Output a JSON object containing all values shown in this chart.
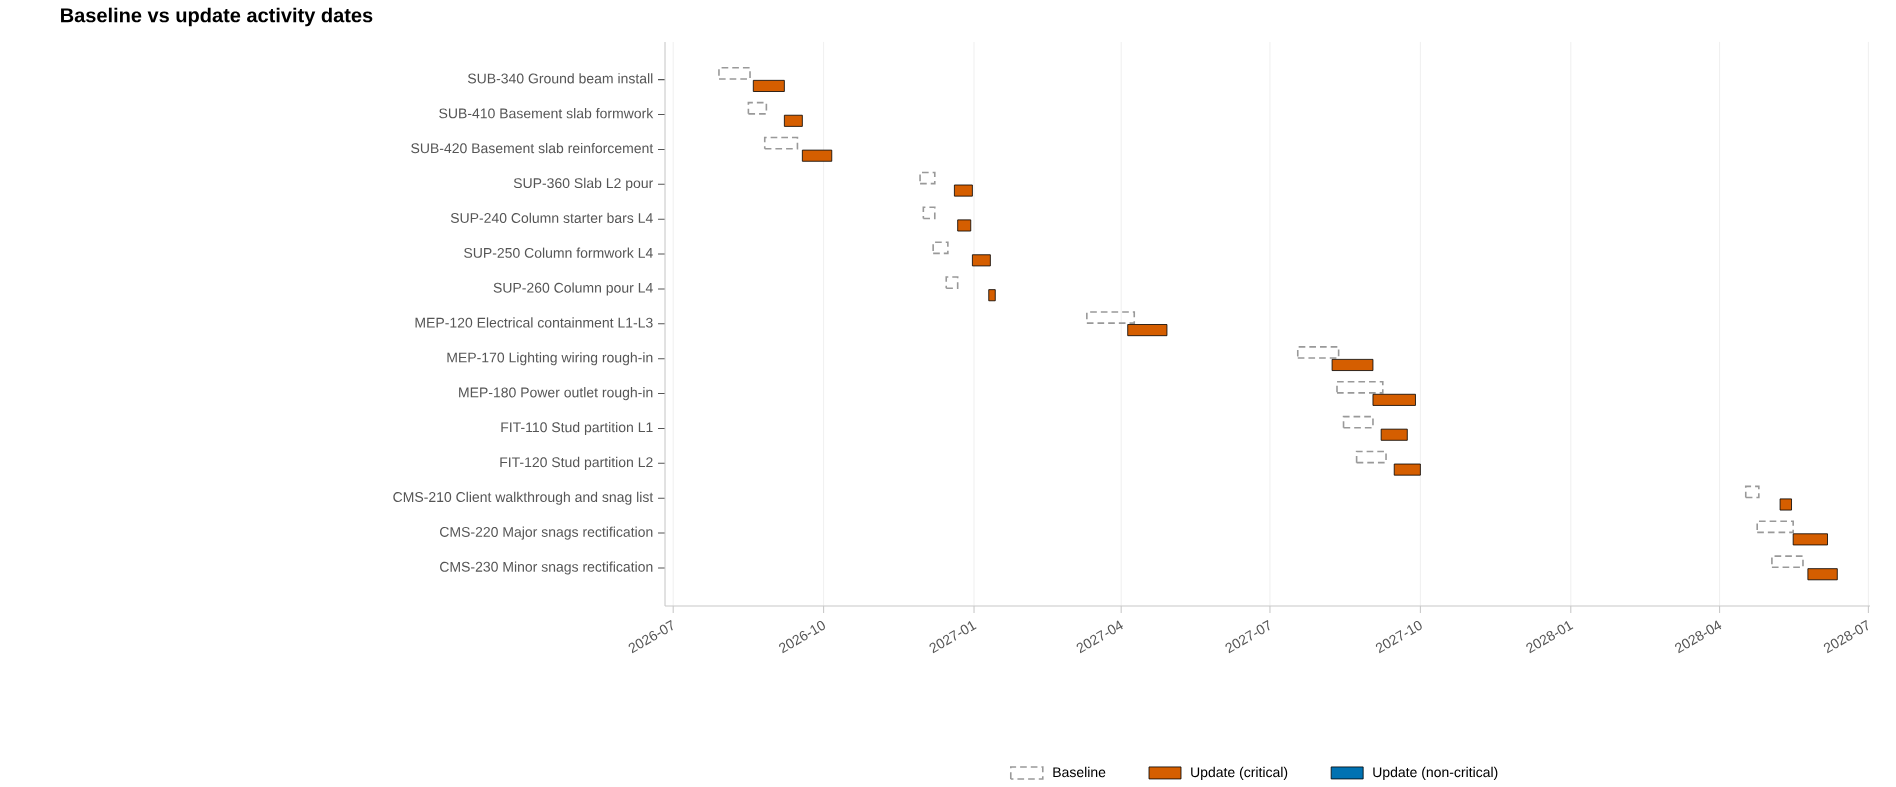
{
  "chart_data": {
    "type": "bar",
    "orientation": "horizontal",
    "title": "Baseline vs update activity dates",
    "categories": [
      "SUB-340 Ground beam install",
      "SUB-410 Basement slab formwork",
      "SUB-420 Basement slab reinforcement",
      "SUP-360 Slab L2 pour",
      "SUP-240 Column starter bars L4",
      "SUP-250 Column formwork L4",
      "SUP-260 Column pour L4",
      "MEP-120 Electrical containment L1-L3",
      "MEP-170 Lighting wiring rough-in",
      "MEP-180 Power outlet rough-in",
      "FIT-110 Stud partition L1",
      "FIT-120 Stud partition L2",
      "CMS-210 Client walkthrough and snag list",
      "CMS-220 Major snags rectification",
      "CMS-230 Minor snags rectification"
    ],
    "series": [
      {
        "name": "Baseline",
        "color": "#999999",
        "line_style": "dashed",
        "base": [
          20663,
          20681,
          20691,
          20786,
          20788,
          20794,
          20802,
          20888,
          21017,
          21041,
          21045,
          21053,
          21291,
          21298,
          21307
        ],
        "values": [
          19,
          11,
          20,
          9,
          7,
          9,
          7,
          29,
          25,
          28,
          18,
          18,
          8,
          22,
          19
        ]
      },
      {
        "name": "Update (critical)",
        "color": "#d55e00",
        "line_style": "solid",
        "base": [
          20684,
          20703,
          20714,
          20807,
          20809,
          20818,
          20828,
          20913,
          21038,
          21063,
          21068,
          21076,
          21312,
          21320,
          21329
        ],
        "values": [
          19,
          11,
          18,
          11,
          8,
          11,
          4,
          24,
          25,
          26,
          16,
          16,
          7,
          21,
          18
        ]
      },
      {
        "name": "Update (non-critical)",
        "color": "#0072b2",
        "line_style": "solid",
        "base": [
          null,
          null,
          null,
          null,
          null,
          null,
          null,
          null,
          null,
          null,
          null,
          null,
          null,
          null,
          null
        ],
        "values": [
          null,
          null,
          null,
          null,
          null,
          null,
          null,
          null,
          null,
          null,
          null,
          null,
          null,
          null,
          null
        ]
      }
    ],
    "xlim": [
      "2026-06-26",
      "2028-07-02"
    ],
    "xticks": [
      "2026-07",
      "2026-10",
      "2027-01",
      "2027-04",
      "2027-07",
      "2027-10",
      "2028-01",
      "2028-04",
      "2028-07"
    ],
    "grid": "x",
    "legend": "bottom"
  }
}
